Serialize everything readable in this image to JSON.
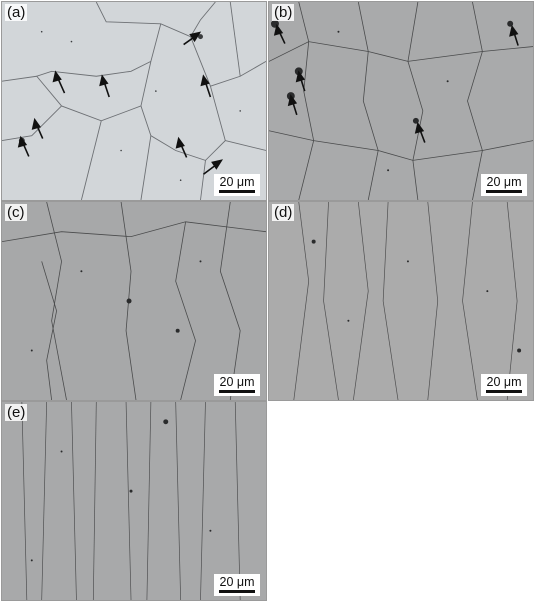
{
  "panels": [
    {
      "label": "(a)",
      "scale_bar": "20 μm",
      "tone": "#d6dadd"
    },
    {
      "label": "(b)",
      "scale_bar": "20 μm",
      "tone": "#a9aaab"
    },
    {
      "label": "(c)",
      "scale_bar": "20 μm",
      "tone": "#a7a8a9"
    },
    {
      "label": "(d)",
      "scale_bar": "20 μm",
      "tone": "#ababab"
    },
    {
      "label": "(e)",
      "scale_bar": "20 μm",
      "tone": "#a8a9aa"
    }
  ]
}
